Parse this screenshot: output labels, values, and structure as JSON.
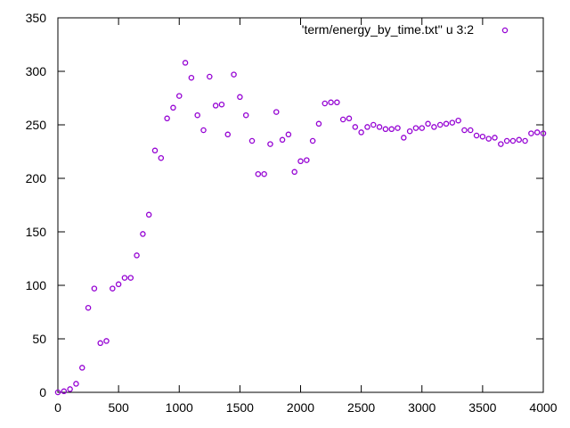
{
  "chart_data": {
    "type": "scatter",
    "title": "",
    "xlabel": "",
    "ylabel": "",
    "xlim": [
      0,
      4000
    ],
    "ylim": [
      0,
      350
    ],
    "xticks": [
      0,
      500,
      1000,
      1500,
      2000,
      2500,
      3000,
      3500,
      4000
    ],
    "yticks": [
      0,
      50,
      100,
      150,
      200,
      250,
      300,
      350
    ],
    "grid": false,
    "legend_position": "top-right",
    "series": [
      {
        "name": "'term/energy_by_time.txt'' u 3:2",
        "color": "#9400d3",
        "marker": "open-circle",
        "x": [
          0,
          50,
          100,
          150,
          200,
          250,
          300,
          350,
          400,
          450,
          500,
          550,
          600,
          650,
          700,
          750,
          800,
          850,
          900,
          950,
          1000,
          1050,
          1100,
          1150,
          1200,
          1250,
          1300,
          1350,
          1400,
          1450,
          1500,
          1550,
          1600,
          1650,
          1700,
          1750,
          1800,
          1850,
          1900,
          1950,
          2000,
          2050,
          2100,
          2150,
          2200,
          2250,
          2300,
          2350,
          2400,
          2450,
          2500,
          2550,
          2600,
          2650,
          2700,
          2750,
          2800,
          2850,
          2900,
          2950,
          3000,
          3050,
          3100,
          3150,
          3200,
          3250,
          3300,
          3350,
          3400,
          3450,
          3500,
          3550,
          3600,
          3650,
          3700,
          3750,
          3800,
          3850,
          3900,
          3950,
          4000
        ],
        "y": [
          0,
          1,
          3,
          8,
          23,
          79,
          97,
          46,
          48,
          97,
          101,
          107,
          107,
          128,
          148,
          166,
          226,
          219,
          256,
          266,
          277,
          308,
          294,
          259,
          245,
          295,
          268,
          269,
          241,
          297,
          276,
          259,
          235,
          204,
          204,
          232,
          262,
          236,
          241,
          206,
          216,
          217,
          235,
          251,
          270,
          271,
          271,
          255,
          256,
          248,
          243,
          248,
          250,
          248,
          246,
          246,
          247,
          238,
          244,
          247,
          247,
          251,
          248,
          250,
          251,
          252,
          254,
          245,
          245,
          240,
          239,
          237,
          238,
          232,
          235,
          235,
          236,
          235,
          242,
          243,
          242
        ]
      }
    ]
  }
}
